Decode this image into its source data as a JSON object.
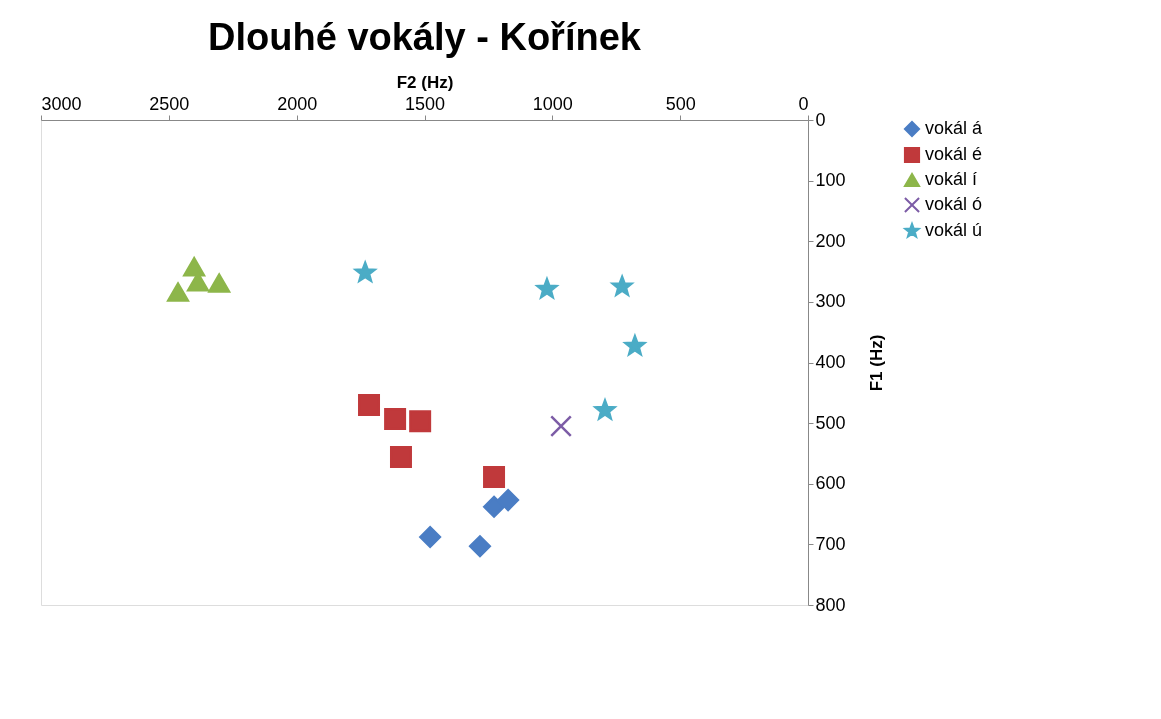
{
  "chart_data": {
    "type": "scatter",
    "title": "Dlouhé vokály - Kořínek",
    "xlabel": "F2 (Hz)",
    "ylabel": "F1 (Hz)",
    "xlim": [
      3000,
      0
    ],
    "xticks": [
      3000,
      2500,
      2000,
      1500,
      1000,
      500,
      0
    ],
    "ylim": [
      800,
      0
    ],
    "yticks": [
      0,
      100,
      200,
      300,
      400,
      500,
      600,
      700,
      800
    ],
    "grid": false,
    "legend": "right",
    "series": [
      {
        "name": "vokál á",
        "color": "#4a7dc4",
        "marker": "diamond",
        "x": [
          1478,
          1283,
          1228,
          1173
        ],
        "values": [
          688,
          703,
          638,
          627
        ]
      },
      {
        "name": "vokál é",
        "color": "#c0393b",
        "marker": "square",
        "x": [
          1717,
          1615,
          1517,
          1592,
          1228
        ],
        "values": [
          470,
          493,
          497,
          556,
          589
        ]
      },
      {
        "name": "vokál í",
        "color": "#8db64a",
        "marker": "triangle",
        "x": [
          2464,
          2401,
          2386,
          2303
        ],
        "values": [
          284,
          242,
          267,
          269
        ]
      },
      {
        "name": "vokál ó",
        "color": "#7c5ca6",
        "marker": "cross",
        "x": [
          966
        ],
        "values": [
          505
        ]
      },
      {
        "name": "vokál ú",
        "color": "#4bacc6",
        "marker": "star",
        "x": [
          1732,
          1021,
          727,
          677,
          794
        ],
        "values": [
          252,
          279,
          275,
          373,
          479
        ]
      }
    ]
  }
}
